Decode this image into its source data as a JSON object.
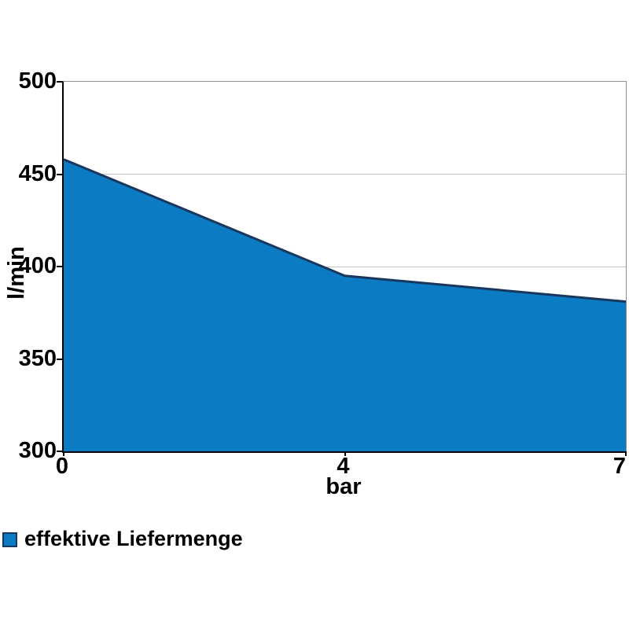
{
  "chart_data": {
    "type": "area",
    "x": [
      0,
      4,
      7
    ],
    "values": [
      458,
      395,
      381
    ],
    "series_name": "effektive Liefermenge",
    "xlabel": "bar",
    "ylabel": "l/min",
    "ylim": [
      300,
      500
    ],
    "yticks": [
      300,
      350,
      400,
      450,
      500
    ],
    "xticks": [
      0,
      4,
      7
    ],
    "x_spacing": "categorical-equal",
    "grid": true,
    "legend_position": "bottom-left",
    "colors": {
      "fill": "#0b7cc4",
      "line": "#17375e",
      "grid": "#c4c4c4",
      "axis": "#000000",
      "plot_border": "#909090",
      "text": "#000000"
    }
  },
  "legend": {
    "label": "effektive Liefermenge"
  }
}
